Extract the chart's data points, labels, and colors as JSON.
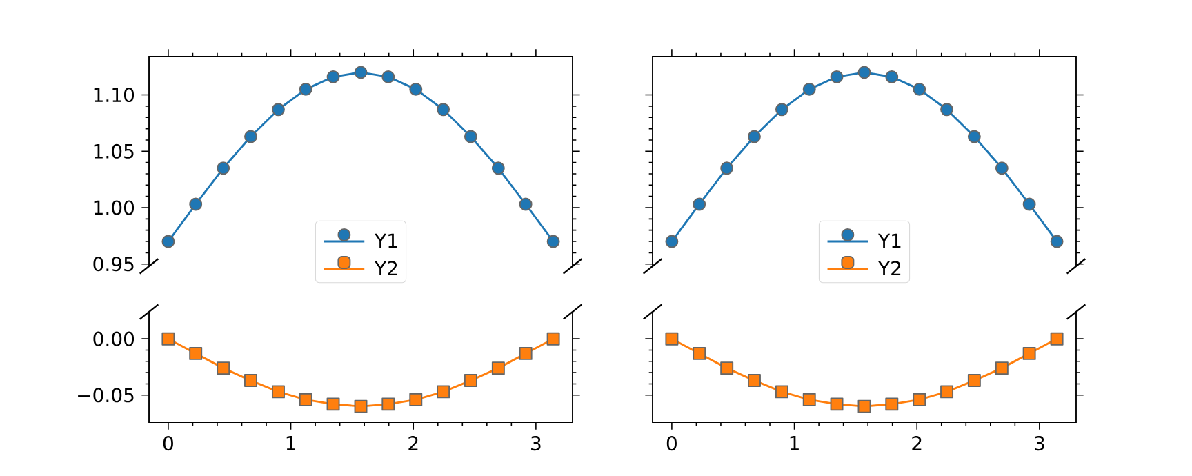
{
  "chart_data": [
    {
      "type": "line",
      "x": [
        0,
        0.224,
        0.449,
        0.673,
        0.898,
        1.122,
        1.346,
        1.571,
        1.795,
        2.02,
        2.244,
        2.468,
        2.693,
        2.917,
        3.142
      ],
      "series": [
        {
          "name": "Y1",
          "color": "#1f77b4",
          "marker": "circle",
          "values": [
            0.97,
            1.003,
            1.035,
            1.063,
            1.087,
            1.105,
            1.116,
            1.12,
            1.116,
            1.105,
            1.087,
            1.063,
            1.035,
            1.003,
            0.97
          ]
        }
      ],
      "xlim": [
        -0.157,
        3.299
      ],
      "xticks": [
        {
          "value": 0,
          "label": null
        },
        {
          "value": 1,
          "label": null
        },
        {
          "value": 2,
          "label": null
        },
        {
          "value": 3,
          "label": null
        }
      ],
      "ylim": [
        0.948,
        1.134
      ],
      "yticks": [
        {
          "value": 0.95,
          "label": "0.95"
        },
        {
          "value": 1,
          "label": "1.00"
        },
        {
          "value": 1.05,
          "label": "1.05"
        },
        {
          "value": 1.1,
          "label": "1.10"
        }
      ],
      "tick_labels": "y",
      "legend": "bottom"
    },
    {
      "type": "line",
      "x": [
        0,
        0.224,
        0.449,
        0.673,
        0.898,
        1.122,
        1.346,
        1.571,
        1.795,
        2.02,
        2.244,
        2.468,
        2.693,
        2.917,
        3.142
      ],
      "series": [
        {
          "name": "Y2",
          "color": "#ff7f0e",
          "marker": "square",
          "values": [
            0,
            -0.013,
            -0.026,
            -0.037,
            -0.047,
            -0.054,
            -0.058,
            -0.06,
            -0.058,
            -0.054,
            -0.047,
            -0.037,
            -0.026,
            -0.013,
            0
          ]
        }
      ],
      "xlim": [
        -0.157,
        3.299
      ],
      "xticks": [
        0,
        1,
        2,
        3
      ],
      "ylim": [
        -0.074,
        0.024
      ],
      "yticks": [
        {
          "value": -0.05,
          "label": "−0.05"
        },
        {
          "value": 0,
          "label": "0.00"
        }
      ]
    },
    {
      "type": "line",
      "x": [
        0,
        0.224,
        0.449,
        0.673,
        0.898,
        1.122,
        1.346,
        1.571,
        1.795,
        2.02,
        2.244,
        2.468,
        2.693,
        2.917,
        3.142
      ],
      "series": [
        {
          "name": "Y1",
          "color": "#1f77b4",
          "marker": "circle",
          "values": [
            0.97,
            1.003,
            1.035,
            1.063,
            1.087,
            1.105,
            1.116,
            1.12,
            1.116,
            1.105,
            1.087,
            1.063,
            1.035,
            1.003,
            0.97
          ]
        }
      ],
      "xlim": [
        -0.157,
        3.299
      ],
      "xticks": [
        {
          "value": 0,
          "label": null
        },
        {
          "value": 1,
          "label": null
        },
        {
          "value": 2,
          "label": null
        },
        {
          "value": 3,
          "label": null
        }
      ],
      "ylim": [
        0.948,
        1.134
      ],
      "yticks": [
        {
          "value": 0.95,
          "label": null
        },
        {
          "value": 1,
          "label": null
        },
        {
          "value": 1.05,
          "label": null
        },
        {
          "value": 1.1,
          "label": null
        }
      ],
      "tick_labels": false,
      "legend": "bottom"
    },
    {
      "type": "line",
      "x": [
        0,
        0.224,
        0.449,
        0.673,
        0.898,
        1.122,
        1.346,
        1.571,
        1.795,
        2.02,
        2.244,
        2.468,
        2.693,
        2.917,
        3.142
      ],
      "series": [
        {
          "name": "Y2",
          "color": "#ff7f0e",
          "marker": "square",
          "values": [
            0,
            -0.013,
            -0.026,
            -0.037,
            -0.047,
            -0.054,
            -0.058,
            -0.06,
            -0.058,
            -0.054,
            -0.047,
            -0.037,
            -0.026,
            -0.013,
            0
          ]
        }
      ],
      "xlim": [
        -0.157,
        3.299
      ],
      "xticks": [
        0,
        1,
        2,
        3
      ],
      "ylim": [
        -0.074,
        0.024
      ],
      "yticks": [
        {
          "value": -0.05,
          "label": null
        },
        {
          "value": 0,
          "label": null
        }
      ],
      "tick_labels": "x"
    }
  ]
}
